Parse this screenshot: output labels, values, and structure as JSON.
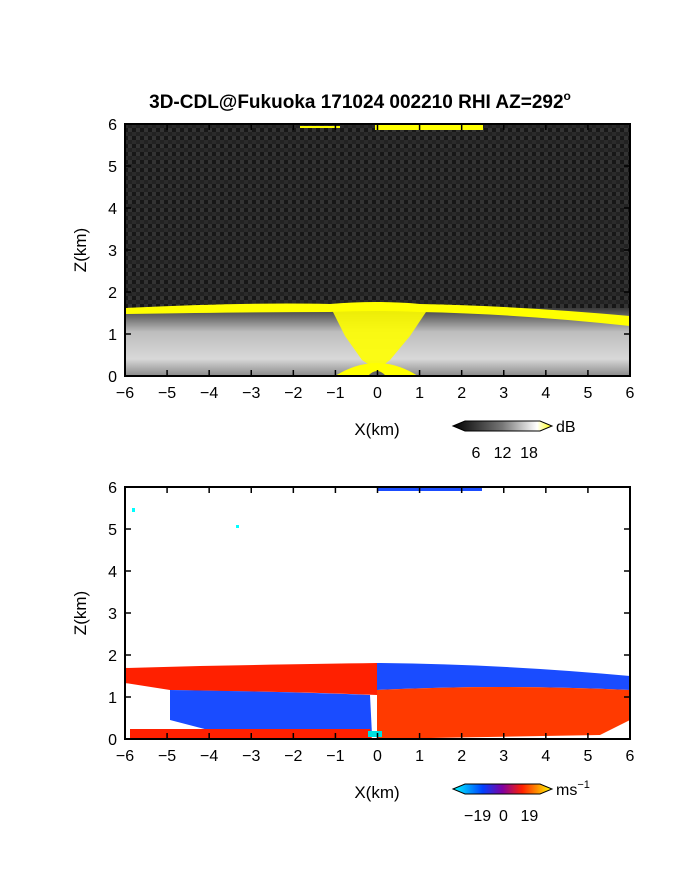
{
  "title": "3D-CDL@Fukuoka 171024 002210 RHI AZ=292",
  "title_superscript": "o",
  "chart_data": [
    {
      "type": "heatmap",
      "xlabel": "X(km)",
      "ylabel": "Z(km)",
      "xlim": [
        -6,
        6
      ],
      "ylim": [
        0,
        6
      ],
      "xticks": [
        "−6",
        "−5",
        "−4",
        "−3",
        "−2",
        "−1",
        "0",
        "1",
        "2",
        "3",
        "4",
        "5",
        "6"
      ],
      "yticks": [
        "0",
        "1",
        "2",
        "3",
        "4",
        "5",
        "6"
      ],
      "colorbar": {
        "unit": "dB",
        "tick_labels": [
          "6",
          "12",
          "18"
        ],
        "tick_values": [
          6,
          12,
          18
        ],
        "colors": [
          "#000000",
          "#555555",
          "#aaaaaa",
          "#ffffff",
          "#ffff00"
        ]
      },
      "features": [
        {
          "description_level": "noise background",
          "z_range": [
            1.6,
            6.0
          ],
          "color": "#202020"
        },
        {
          "description_level": "boundary layer echo",
          "z_range": [
            0.0,
            1.6
          ],
          "color": "#9a9a9a"
        },
        {
          "description_level": "strong echo at top of boundary layer",
          "z": 1.55,
          "x_range": [
            -6,
            6
          ],
          "color": "#ffff00"
        },
        {
          "description_level": "strong echo near radar",
          "x_range": [
            -1,
            1
          ],
          "z_range": [
            0,
            0.4
          ],
          "color": "#ffff00"
        },
        {
          "description_level": "cloud echo at top",
          "x_range": [
            0,
            2.5
          ],
          "z": 5.95,
          "color": "#ffff00"
        }
      ]
    },
    {
      "type": "heatmap",
      "xlabel": "X(km)",
      "ylabel": "Z(km)",
      "xlim": [
        -6,
        6
      ],
      "ylim": [
        0,
        6
      ],
      "xticks": [
        "−6",
        "−5",
        "−4",
        "−3",
        "−2",
        "−1",
        "0",
        "1",
        "2",
        "3",
        "4",
        "5",
        "6"
      ],
      "yticks": [
        "0",
        "1",
        "2",
        "3",
        "4",
        "5",
        "6"
      ],
      "colorbar": {
        "unit": "ms",
        "unit_superscript": "−1",
        "tick_labels": [
          "−19",
          "0",
          "19"
        ],
        "tick_values": [
          -19,
          0,
          19
        ],
        "colors": [
          "#00ffff",
          "#0000ff",
          "#ff0000",
          "#ffff00"
        ]
      },
      "regions": [
        {
          "label": "outflow aloft",
          "x_range": [
            -6,
            0
          ],
          "z_range": [
            1.05,
            1.7
          ],
          "velocity_sign": "positive",
          "color": "#ff2000"
        },
        {
          "label": "inflow below",
          "x_range": [
            -5.5,
            -0.1
          ],
          "z_range": [
            0.15,
            1.05
          ],
          "velocity_sign": "negative",
          "color": "#1040ff"
        },
        {
          "label": "near-ground",
          "x_range": [
            -5.8,
            -1.5
          ],
          "z_range": [
            0.0,
            0.15
          ],
          "velocity_sign": "positive",
          "color": "#ff2000"
        },
        {
          "label": "approach side aloft",
          "x_range": [
            0,
            6
          ],
          "z_range": [
            1.2,
            1.7
          ],
          "velocity_sign": "negative",
          "color": "#1040ff"
        },
        {
          "label": "approach side low",
          "x_range": [
            0,
            6
          ],
          "z_range": [
            0.0,
            1.2
          ],
          "velocity_sign": "positive",
          "color": "#ff3000"
        }
      ]
    }
  ]
}
